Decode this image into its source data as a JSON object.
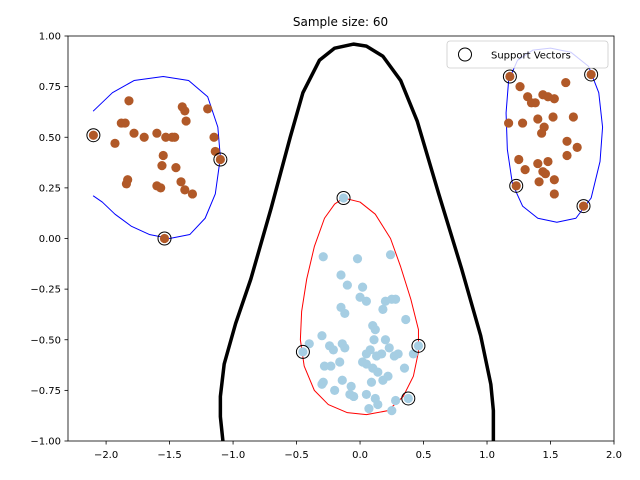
{
  "chart_data": {
    "type": "scatter",
    "title": "Sample size: 60",
    "xlim": [
      -2.3,
      2.0
    ],
    "ylim": [
      -1.0,
      1.0
    ],
    "xticks": [
      -2.0,
      -1.5,
      -1.0,
      -0.5,
      0.0,
      0.5,
      1.0,
      1.5,
      2.0
    ],
    "yticks": [
      -1.0,
      -0.75,
      -0.5,
      -0.25,
      0.0,
      0.25,
      0.5,
      0.75,
      1.0
    ],
    "xtick_labels": [
      "−2.0",
      "−1.5",
      "−1.0",
      "−0.5",
      "0.0",
      "0.5",
      "1.0",
      "1.5",
      "2.0"
    ],
    "ytick_labels": [
      "−1.00",
      "−0.75",
      "−0.50",
      "−0.25",
      "0.00",
      "0.25",
      "0.50",
      "0.75",
      "1.00"
    ],
    "legend": {
      "label": "Support Vectors",
      "position": "top-right"
    },
    "colors": {
      "outlier": "#b15928",
      "inlier": "#a6cee3",
      "outer_boundary": "#000000",
      "cluster_left": "#0000ff",
      "cluster_right": "#0000ff",
      "cluster_center": "#ff0000"
    },
    "series": [
      {
        "name": "brown-class",
        "points": [
          [
            -2.1,
            0.51
          ],
          [
            -1.93,
            0.47
          ],
          [
            -1.88,
            0.57
          ],
          [
            -1.85,
            0.57
          ],
          [
            -1.82,
            0.68
          ],
          [
            -1.78,
            0.52
          ],
          [
            -1.7,
            0.5
          ],
          [
            -1.6,
            0.52
          ],
          [
            -1.53,
            0.5
          ],
          [
            -1.48,
            0.5
          ],
          [
            -1.46,
            0.5
          ],
          [
            -1.55,
            0.41
          ],
          [
            -1.56,
            0.36
          ],
          [
            -1.45,
            0.35
          ],
          [
            -1.4,
            0.65
          ],
          [
            -1.38,
            0.63
          ],
          [
            -1.37,
            0.58
          ],
          [
            -1.2,
            0.64
          ],
          [
            -1.15,
            0.5
          ],
          [
            -1.14,
            0.43
          ],
          [
            -1.1,
            0.39
          ],
          [
            -1.41,
            0.28
          ],
          [
            -1.38,
            0.24
          ],
          [
            -1.32,
            0.22
          ],
          [
            -1.6,
            0.26
          ],
          [
            -1.57,
            0.25
          ],
          [
            -1.84,
            0.27
          ],
          [
            -1.83,
            0.29
          ],
          [
            -1.54,
            0.0
          ],
          [
            1.18,
            0.8
          ],
          [
            1.17,
            0.57
          ],
          [
            1.26,
            0.75
          ],
          [
            1.32,
            0.7
          ],
          [
            1.35,
            0.67
          ],
          [
            1.38,
            0.67
          ],
          [
            1.44,
            0.71
          ],
          [
            1.48,
            0.7
          ],
          [
            1.62,
            0.77
          ],
          [
            1.82,
            0.81
          ],
          [
            1.28,
            0.57
          ],
          [
            1.4,
            0.59
          ],
          [
            1.45,
            0.55
          ],
          [
            1.43,
            0.52
          ],
          [
            1.52,
            0.6
          ],
          [
            1.53,
            0.69
          ],
          [
            1.68,
            0.6
          ],
          [
            1.25,
            0.39
          ],
          [
            1.3,
            0.34
          ],
          [
            1.4,
            0.37
          ],
          [
            1.48,
            0.38
          ],
          [
            1.44,
            0.33
          ],
          [
            1.46,
            0.32
          ],
          [
            1.53,
            0.29
          ],
          [
            1.63,
            0.48
          ],
          [
            1.63,
            0.41
          ],
          [
            1.71,
            0.45
          ],
          [
            1.41,
            0.28
          ],
          [
            1.53,
            0.22
          ],
          [
            1.23,
            0.26
          ],
          [
            1.76,
            0.16
          ]
        ]
      },
      {
        "name": "blue-class",
        "points": [
          [
            -0.29,
            -0.09
          ],
          [
            -0.15,
            -0.18
          ],
          [
            -0.02,
            -0.1
          ],
          [
            0.02,
            -0.24
          ],
          [
            0.24,
            -0.08
          ],
          [
            -0.1,
            -0.23
          ],
          [
            0.0,
            -0.29
          ],
          [
            0.05,
            -0.31
          ],
          [
            0.2,
            -0.31
          ],
          [
            0.25,
            -0.3
          ],
          [
            0.28,
            -0.3
          ],
          [
            0.18,
            -0.35
          ],
          [
            -0.15,
            -0.34
          ],
          [
            -0.12,
            -0.37
          ],
          [
            0.1,
            -0.43
          ],
          [
            0.12,
            -0.45
          ],
          [
            0.36,
            -0.4
          ],
          [
            -0.3,
            -0.48
          ],
          [
            -0.4,
            -0.52
          ],
          [
            -0.24,
            -0.53
          ],
          [
            -0.21,
            -0.55
          ],
          [
            -0.14,
            -0.52
          ],
          [
            -0.12,
            -0.54
          ],
          [
            0.11,
            -0.5
          ],
          [
            0.2,
            -0.5
          ],
          [
            0.23,
            -0.54
          ],
          [
            0.05,
            -0.57
          ],
          [
            0.08,
            -0.55
          ],
          [
            0.13,
            -0.58
          ],
          [
            0.17,
            -0.57
          ],
          [
            0.27,
            -0.58
          ],
          [
            0.3,
            -0.57
          ],
          [
            0.42,
            -0.57
          ],
          [
            -0.28,
            -0.63
          ],
          [
            -0.23,
            -0.63
          ],
          [
            -0.16,
            -0.61
          ],
          [
            0.02,
            -0.61
          ],
          [
            0.05,
            -0.62
          ],
          [
            0.1,
            -0.64
          ],
          [
            0.14,
            -0.66
          ],
          [
            0.22,
            -0.68
          ],
          [
            0.35,
            -0.64
          ],
          [
            -0.29,
            -0.71
          ],
          [
            -0.3,
            -0.72
          ],
          [
            -0.14,
            -0.7
          ],
          [
            -0.07,
            -0.73
          ],
          [
            0.09,
            -0.71
          ],
          [
            0.18,
            -0.7
          ],
          [
            -0.08,
            -0.77
          ],
          [
            -0.05,
            -0.78
          ],
          [
            0.05,
            -0.77
          ],
          [
            0.12,
            -0.79
          ],
          [
            0.28,
            -0.8
          ],
          [
            0.38,
            -0.79
          ],
          [
            -0.2,
            -0.75
          ],
          [
            0.07,
            -0.84
          ],
          [
            0.14,
            -0.82
          ],
          [
            0.25,
            -0.85
          ],
          [
            0.46,
            -0.53
          ],
          [
            -0.45,
            -0.56
          ],
          [
            -0.13,
            0.2
          ]
        ]
      },
      {
        "name": "support-vectors",
        "points": [
          [
            -2.1,
            0.51
          ],
          [
            -1.54,
            0.0
          ],
          [
            -1.1,
            0.39
          ],
          [
            1.18,
            0.8
          ],
          [
            1.82,
            0.81
          ],
          [
            1.23,
            0.26
          ],
          [
            1.76,
            0.16
          ],
          [
            -0.13,
            0.2
          ],
          [
            -0.45,
            -0.56
          ],
          [
            0.46,
            -0.53
          ],
          [
            0.38,
            -0.79
          ]
        ]
      }
    ],
    "contours": [
      {
        "name": "outer-decision-boundary",
        "color": "#000000",
        "closed": false,
        "points": [
          [
            -1.08,
            -1.0
          ],
          [
            -1.1,
            -0.88
          ],
          [
            -1.1,
            -0.78
          ],
          [
            -1.07,
            -0.62
          ],
          [
            -0.98,
            -0.42
          ],
          [
            -0.86,
            -0.2
          ],
          [
            -0.7,
            0.15
          ],
          [
            -0.55,
            0.5
          ],
          [
            -0.45,
            0.72
          ],
          [
            -0.32,
            0.88
          ],
          [
            -0.2,
            0.94
          ],
          [
            -0.05,
            0.96
          ],
          [
            0.05,
            0.95
          ],
          [
            0.18,
            0.9
          ],
          [
            0.32,
            0.78
          ],
          [
            0.45,
            0.58
          ],
          [
            0.62,
            0.22
          ],
          [
            0.8,
            -0.15
          ],
          [
            0.95,
            -0.48
          ],
          [
            1.03,
            -0.72
          ],
          [
            1.05,
            -0.85
          ],
          [
            1.05,
            -1.0
          ]
        ]
      },
      {
        "name": "left-cluster-boundary",
        "color": "#0000ff",
        "closed": false,
        "points": [
          [
            -2.1,
            0.63
          ],
          [
            -1.95,
            0.72
          ],
          [
            -1.78,
            0.78
          ],
          [
            -1.55,
            0.8
          ],
          [
            -1.35,
            0.78
          ],
          [
            -1.2,
            0.7
          ],
          [
            -1.12,
            0.55
          ],
          [
            -1.1,
            0.4
          ],
          [
            -1.14,
            0.22
          ],
          [
            -1.22,
            0.1
          ],
          [
            -1.34,
            0.02
          ],
          [
            -1.5,
            0.0
          ],
          [
            -1.66,
            0.02
          ],
          [
            -1.8,
            0.06
          ],
          [
            -1.93,
            0.12
          ],
          [
            -2.03,
            0.18
          ],
          [
            -2.1,
            0.21
          ]
        ]
      },
      {
        "name": "right-cluster-boundary",
        "color": "#0000ff",
        "closed": true,
        "points": [
          [
            1.5,
            0.94
          ],
          [
            1.66,
            0.92
          ],
          [
            1.8,
            0.85
          ],
          [
            1.88,
            0.72
          ],
          [
            1.91,
            0.55
          ],
          [
            1.89,
            0.38
          ],
          [
            1.82,
            0.2
          ],
          [
            1.7,
            0.1
          ],
          [
            1.55,
            0.08
          ],
          [
            1.4,
            0.1
          ],
          [
            1.28,
            0.16
          ],
          [
            1.2,
            0.27
          ],
          [
            1.16,
            0.44
          ],
          [
            1.15,
            0.62
          ],
          [
            1.17,
            0.78
          ],
          [
            1.24,
            0.88
          ],
          [
            1.36,
            0.93
          ]
        ]
      },
      {
        "name": "center-cluster-boundary",
        "color": "#ff0000",
        "closed": true,
        "points": [
          [
            -0.13,
            0.2
          ],
          [
            0.0,
            0.18
          ],
          [
            0.12,
            0.12
          ],
          [
            0.24,
            0.0
          ],
          [
            0.32,
            -0.14
          ],
          [
            0.4,
            -0.3
          ],
          [
            0.46,
            -0.45
          ],
          [
            0.46,
            -0.56
          ],
          [
            0.42,
            -0.68
          ],
          [
            0.34,
            -0.78
          ],
          [
            0.22,
            -0.85
          ],
          [
            0.05,
            -0.87
          ],
          [
            -0.1,
            -0.86
          ],
          [
            -0.25,
            -0.82
          ],
          [
            -0.36,
            -0.75
          ],
          [
            -0.44,
            -0.63
          ],
          [
            -0.47,
            -0.5
          ],
          [
            -0.46,
            -0.36
          ],
          [
            -0.42,
            -0.2
          ],
          [
            -0.36,
            -0.04
          ],
          [
            -0.28,
            0.1
          ],
          [
            -0.2,
            0.17
          ]
        ]
      }
    ]
  }
}
